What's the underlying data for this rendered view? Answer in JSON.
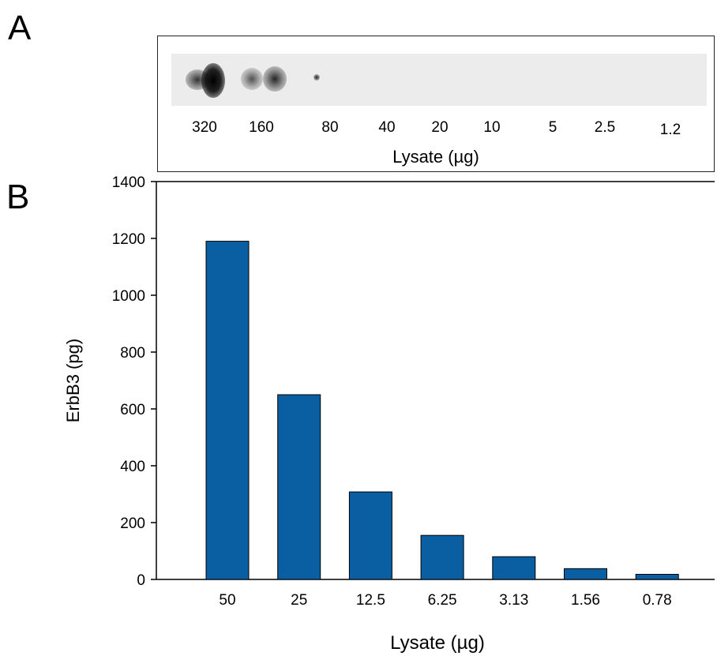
{
  "panels": {
    "a_label": "A",
    "b_label": "B"
  },
  "blot": {
    "lane_labels": [
      "320",
      "160",
      "80",
      "40",
      "20",
      "10",
      "5",
      "2.5",
      "1.2"
    ],
    "xlabel": "Lysate (µg)"
  },
  "chart_data": {
    "type": "bar",
    "title": "",
    "categories": [
      "50",
      "25",
      "12.5",
      "6.25",
      "3.13",
      "1.56",
      "0.78"
    ],
    "values": [
      1190,
      650,
      308,
      155,
      80,
      38,
      18
    ],
    "xlabel": "Lysate (µg)",
    "ylabel": "ErbB3 (pg)",
    "ylim": [
      0,
      1400
    ],
    "yticks": [
      0,
      200,
      400,
      600,
      800,
      1000,
      1200,
      1400
    ],
    "bar_color": "#0a5fa3",
    "grid": false,
    "legend": "none"
  }
}
